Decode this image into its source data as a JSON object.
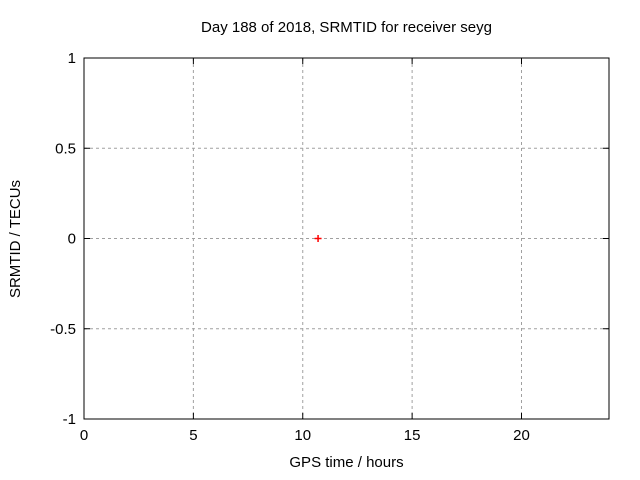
{
  "window": {
    "background": "#ffffff"
  },
  "chart_data": {
    "type": "scatter",
    "title": "Day 188 of 2018, SRMTID for receiver seyg",
    "xlabel": "GPS time / hours",
    "ylabel": "SRMTID / TECUs",
    "xlim": [
      0,
      24
    ],
    "ylim": [
      -1,
      1
    ],
    "xticks": [
      0,
      5,
      10,
      15,
      20
    ],
    "xtick_labels": [
      "0",
      "5",
      "10",
      "15",
      "20"
    ],
    "yticks": [
      -1,
      -0.5,
      0,
      0.5,
      1
    ],
    "ytick_labels": [
      "-1",
      "-0.5",
      "0",
      "0.5",
      "1"
    ],
    "grid": true,
    "grid_style": "dashed",
    "legend": "none",
    "series": [
      {
        "name": "SRMTID",
        "marker": "plus",
        "color": "#ff0000",
        "points": [
          {
            "x": 10.7,
            "y": 0.0
          }
        ]
      }
    ],
    "colors": {
      "background": "#ffffff",
      "border": "#000000",
      "grid": "#a0a0a0",
      "text": "#000000"
    }
  }
}
